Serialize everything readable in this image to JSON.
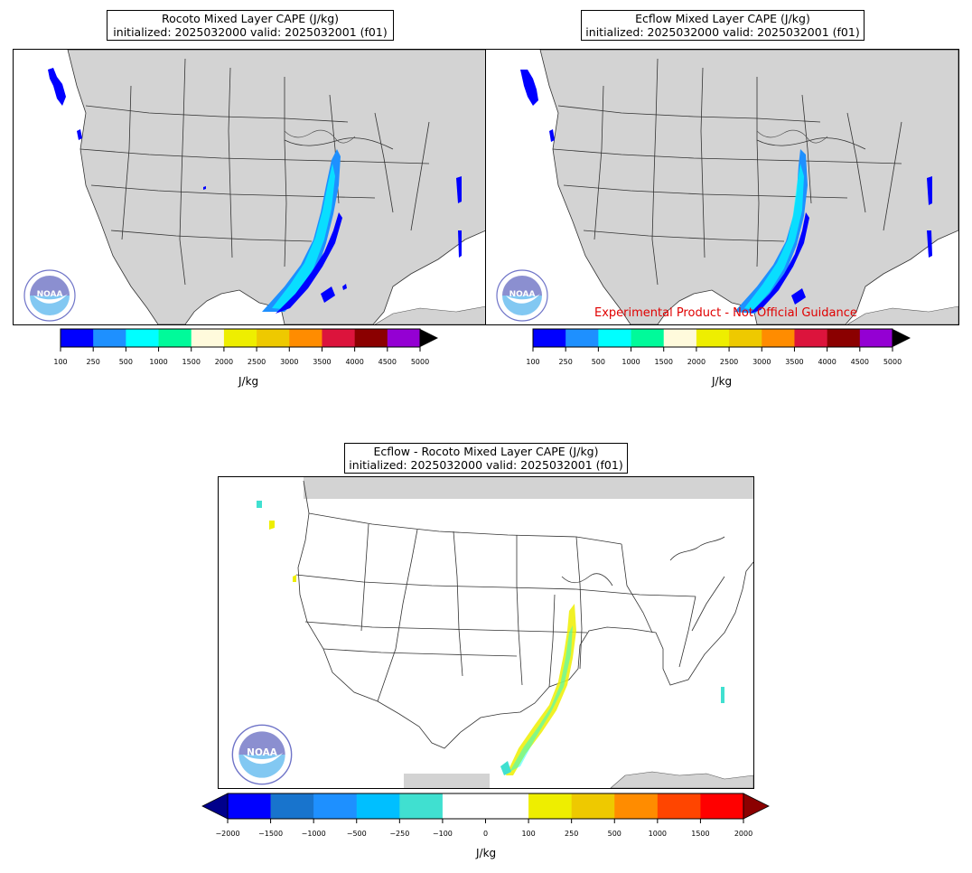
{
  "panels": [
    {
      "title_line1": "Rocoto Mixed Layer CAPE (J/kg)",
      "title_line2": "initialized: 2025032000 valid: 2025032001 (f01)"
    },
    {
      "title_line1": "Ecflow Mixed Layer CAPE (J/kg)",
      "title_line2": "initialized: 2025032000 valid: 2025032001 (f01)",
      "note": "Experimental Product - Not Official Guidance"
    },
    {
      "title_line1": "Ecflow - Rocoto Mixed Layer CAPE (J/kg)",
      "title_line2": "initialized: 2025032000 valid: 2025032001 (f01)"
    }
  ],
  "colorbar_top": {
    "unit": "J/kg",
    "ticks": [
      "100",
      "250",
      "500",
      "1000",
      "1500",
      "2000",
      "2500",
      "3000",
      "3500",
      "4000",
      "4500",
      "5000"
    ],
    "colors": [
      "#0000ff",
      "#1e90ff",
      "#00ffff",
      "#00fa9a",
      "#fffadc",
      "#eeee00",
      "#eec900",
      "#ff8c00",
      "#dc143c",
      "#8b0000",
      "#9400d3"
    ],
    "extend_color": "#000000"
  },
  "colorbar_diff": {
    "unit": "J/kg",
    "ticks": [
      "−2000",
      "−1500",
      "−1000",
      "−500",
      "−250",
      "−100",
      "0",
      "100",
      "250",
      "500",
      "1000",
      "1500",
      "2000"
    ],
    "colors": [
      "#0000ff",
      "#1874cd",
      "#1e90ff",
      "#00bfff",
      "#40e0d0",
      "#ffffff",
      "#ffffff",
      "#eeee00",
      "#eec900",
      "#ff8c00",
      "#ff4500",
      "#ff0000"
    ],
    "extend_low": "#00008b",
    "extend_high": "#8b0000"
  },
  "colors": {
    "land": "#d3d3d3",
    "ocean": "#ffffff",
    "state_border": "#333333",
    "note": "#e00000"
  },
  "logo": {
    "text": "NOAA",
    "ring_text": "NATIONAL OCEANIC AND ATMOSPHERIC ADMINISTRATION · U.S. DEPARTMENT OF COMMERCE"
  }
}
